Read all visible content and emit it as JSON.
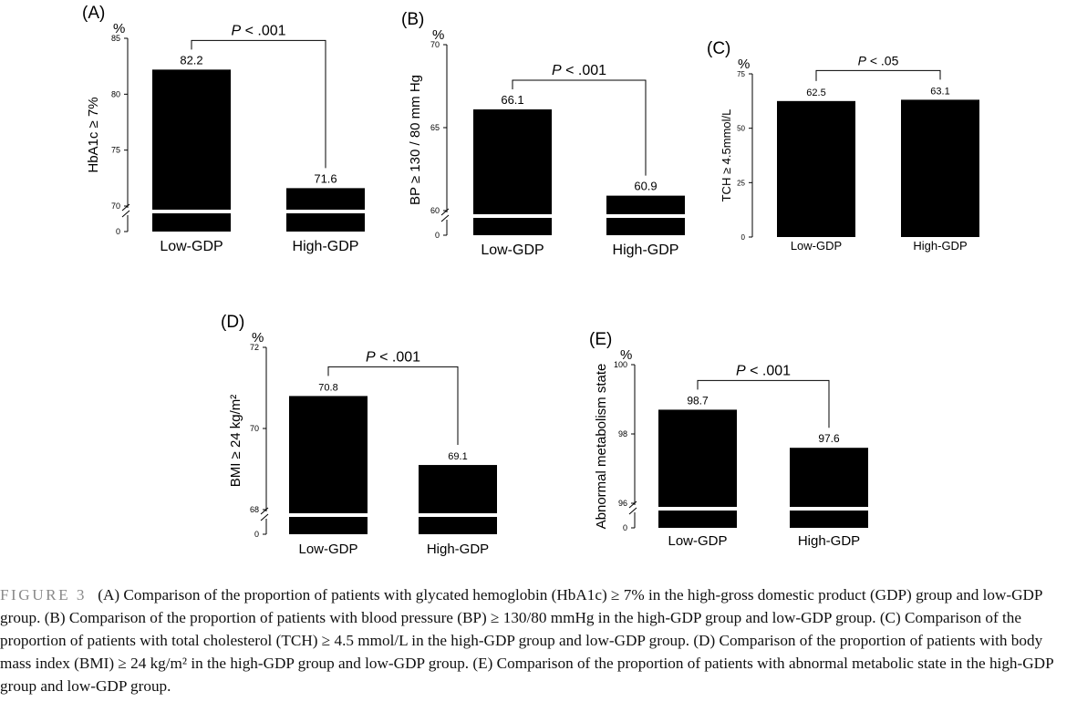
{
  "chart_data": [
    {
      "panel_label": "(A)",
      "type": "bar",
      "unit": "%",
      "ylabel": "HbA1c ≥ 7%",
      "categories": [
        "Low-GDP",
        "High-GDP"
      ],
      "values": [
        82.2,
        71.6
      ],
      "value_labels": [
        "82.2",
        "71.6"
      ],
      "ylim": [
        0,
        85
      ],
      "axis_break": true,
      "yticks": [
        {
          "v": 0,
          "label": "0"
        },
        {
          "v": 70,
          "label": "70"
        },
        {
          "v": 75,
          "label": "75"
        },
        {
          "v": 80,
          "label": "80"
        },
        {
          "v": 85,
          "label": "85"
        }
      ],
      "annotation": "P < .001",
      "grid": false
    },
    {
      "panel_label": "(B)",
      "type": "bar",
      "unit": "%",
      "ylabel": "BP ≥ 130 / 80 mm Hg",
      "categories": [
        "Low-GDP",
        "High-GDP"
      ],
      "values": [
        66.1,
        60.9
      ],
      "value_labels": [
        "66.1",
        "60.9"
      ],
      "ylim": [
        0,
        70
      ],
      "axis_break": true,
      "yticks": [
        {
          "v": 0,
          "label": "0"
        },
        {
          "v": 60,
          "label": "60"
        },
        {
          "v": 65,
          "label": "65"
        },
        {
          "v": 70,
          "label": "70"
        }
      ],
      "annotation": "P < .001",
      "grid": false
    },
    {
      "panel_label": "(C)",
      "type": "bar",
      "unit": "%",
      "ylabel": "TCH ≥ 4.5mmol/L",
      "categories": [
        "Low-GDP",
        "High-GDP"
      ],
      "values": [
        62.5,
        63.1
      ],
      "value_labels": [
        "62.5",
        "63.1"
      ],
      "ylim": [
        0,
        75
      ],
      "axis_break": false,
      "yticks": [
        {
          "v": 0,
          "label": "0"
        },
        {
          "v": 25,
          "label": "25"
        },
        {
          "v": 50,
          "label": "50"
        },
        {
          "v": 75,
          "label": "75"
        }
      ],
      "annotation": "P < .05",
      "grid": false
    },
    {
      "panel_label": "(D)",
      "type": "bar",
      "unit": "%",
      "ylabel": "BMI ≥ 24 kg/m²",
      "categories": [
        "Low-GDP",
        "High-GDP"
      ],
      "values": [
        70.8,
        69.1
      ],
      "value_labels": [
        "70.8",
        "69.1"
      ],
      "ylim": [
        0,
        72
      ],
      "axis_break": true,
      "yticks": [
        {
          "v": 0,
          "label": "0"
        },
        {
          "v": 68,
          "label": "68"
        },
        {
          "v": 70,
          "label": "70"
        },
        {
          "v": 72,
          "label": "72"
        }
      ],
      "annotation": "P < .001",
      "grid": false
    },
    {
      "panel_label": "(E)",
      "type": "bar",
      "unit": "%",
      "ylabel": "Abnormal metabolism state",
      "categories": [
        "Low-GDP",
        "High-GDP"
      ],
      "values": [
        98.7,
        97.6
      ],
      "value_labels": [
        "98.7",
        "97.6"
      ],
      "ylim": [
        0,
        100
      ],
      "axis_break": true,
      "yticks": [
        {
          "v": 0,
          "label": "0"
        },
        {
          "v": 96,
          "label": "96"
        },
        {
          "v": 98,
          "label": "98"
        },
        {
          "v": 100,
          "label": "100"
        }
      ],
      "annotation": "P < .001",
      "grid": false
    }
  ],
  "caption": {
    "label": "FIGURE 3",
    "text": "(A) Comparison of the proportion of patients with glycated hemoglobin (HbA1c) ≥ 7% in the high-gross domestic product (GDP) group and low-GDP group. (B) Comparison of the proportion of patients with blood pressure (BP) ≥ 130/80 mmHg in the high-GDP group and low-GDP group. (C) Comparison of the proportion of patients with total cholesterol (TCH) ≥ 4.5 mmol/L in the high-GDP group and low-GDP group. (D) Comparison of the proportion of patients with body mass index (BMI) ≥ 24 kg/m² in the high-GDP group and low-GDP group. (E) Comparison of the proportion of patients with abnormal metabolic state in the high-GDP group and low-GDP group."
  }
}
